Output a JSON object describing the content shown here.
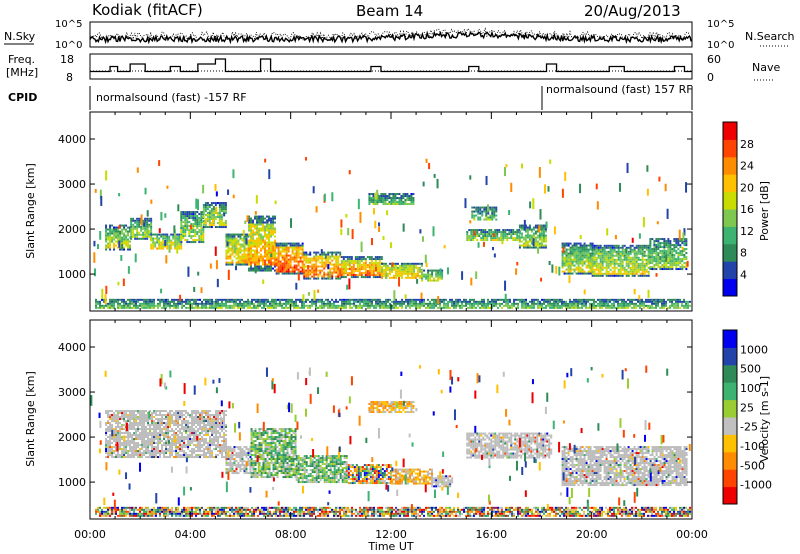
{
  "header": {
    "station": "Kodiak (fitACF)",
    "beam": "Beam 14",
    "date": "20/Aug/2013"
  },
  "noise_panel": {
    "left_label": "N.Sky",
    "right_label": "N.Search",
    "left_ticks": [
      "10^5",
      "10^0"
    ],
    "right_ticks": [
      "10^5",
      "10^0"
    ]
  },
  "freq_panel": {
    "left_label_1": "Freq.",
    "left_label_2": "[MHz]",
    "right_label": "Nave",
    "left_ticks": [
      "18",
      "8"
    ],
    "right_ticks": [
      "60",
      "0"
    ]
  },
  "cpid_panel": {
    "label": "CPID",
    "segments": [
      {
        "text": "normalsound (fast) -157 RF",
        "start_hour": 0
      },
      {
        "text": "normalsound (fast) 157 RF",
        "start_hour": 18
      }
    ]
  },
  "colors": {
    "power_scale": [
      "#0000ee",
      "#2244aa",
      "#2e8b57",
      "#3cb371",
      "#7ec850",
      "#c8dc00",
      "#ffc000",
      "#ff8c00",
      "#ff4400",
      "#ee0000"
    ],
    "velocity_scale": [
      "#ee0000",
      "#ff4400",
      "#ff8c00",
      "#ffc000",
      "#c0c0c0",
      "#9acd32",
      "#3cb371",
      "#2e8b57",
      "#2244aa",
      "#0000ee"
    ],
    "velocity_ground": "#bbbbbb"
  },
  "chart_data": [
    {
      "type": "heatmap",
      "name": "power",
      "ylabel": "Slant Range [km]",
      "xlim_hours": [
        0,
        24
      ],
      "ylim": [
        180,
        4600
      ],
      "yticks": [
        1000,
        2000,
        3000,
        4000
      ],
      "colorbar": {
        "label": "Power [dB]",
        "range": [
          0,
          32
        ],
        "ticks": [
          4,
          8,
          12,
          16,
          20,
          24,
          28
        ]
      },
      "echo_regions": [
        {
          "t0": 0.6,
          "t1": 1.6,
          "r0": 1550,
          "r1": 2100,
          "level": 14
        },
        {
          "t0": 1.6,
          "t1": 2.4,
          "r0": 1800,
          "r1": 2250,
          "level": 12
        },
        {
          "t0": 2.4,
          "t1": 3.6,
          "r0": 1550,
          "r1": 1900,
          "level": 16
        },
        {
          "t0": 3.6,
          "t1": 4.5,
          "r0": 1700,
          "r1": 2400,
          "level": 13
        },
        {
          "t0": 4.5,
          "t1": 5.4,
          "r0": 2050,
          "r1": 2600,
          "level": 14
        },
        {
          "t0": 5.4,
          "t1": 6.3,
          "r0": 1200,
          "r1": 1900,
          "level": 18
        },
        {
          "t0": 6.3,
          "t1": 7.4,
          "r0": 1100,
          "r1": 2300,
          "level": 20
        },
        {
          "t0": 7.4,
          "t1": 8.5,
          "r0": 1000,
          "r1": 1700,
          "level": 24
        },
        {
          "t0": 8.5,
          "t1": 10.0,
          "r0": 900,
          "r1": 1500,
          "level": 22
        },
        {
          "t0": 10.0,
          "t1": 11.6,
          "r0": 950,
          "r1": 1400,
          "level": 21
        },
        {
          "t0": 11.6,
          "t1": 13.2,
          "r0": 900,
          "r1": 1250,
          "level": 18
        },
        {
          "t0": 13.2,
          "t1": 14.0,
          "r0": 850,
          "r1": 1100,
          "level": 14
        },
        {
          "t0": 11.1,
          "t1": 12.9,
          "r0": 2550,
          "r1": 2800,
          "level": 10
        },
        {
          "t0": 15.0,
          "t1": 17.1,
          "r0": 1750,
          "r1": 2000,
          "level": 12
        },
        {
          "t0": 17.1,
          "t1": 18.2,
          "r0": 1600,
          "r1": 2100,
          "level": 13
        },
        {
          "t0": 18.8,
          "t1": 20.0,
          "r0": 1000,
          "r1": 1700,
          "level": 14
        },
        {
          "t0": 20.0,
          "t1": 22.3,
          "r0": 950,
          "r1": 1650,
          "level": 15
        },
        {
          "t0": 22.3,
          "t1": 23.8,
          "r0": 1100,
          "r1": 1800,
          "level": 12
        },
        {
          "t0": 15.2,
          "t1": 16.2,
          "r0": 2200,
          "r1": 2500,
          "level": 10
        },
        {
          "t0": 0.2,
          "t1": 23.9,
          "r0": 250,
          "r1": 450,
          "level": 10
        }
      ]
    },
    {
      "type": "heatmap",
      "name": "velocity",
      "xlabel": "Time UT",
      "ylabel": "Slant Range [km]",
      "xlim_hours": [
        0,
        24
      ],
      "xticks": [
        "00:00",
        "04:00",
        "08:00",
        "12:00",
        "16:00",
        "20:00",
        "00:00"
      ],
      "ylim": [
        180,
        4600
      ],
      "yticks": [
        1000,
        2000,
        3000,
        4000
      ],
      "colorbar": {
        "label": "Velocity [m s-1]",
        "ticks": [
          "1000",
          "500",
          "100",
          "25",
          "-25",
          "-100",
          "-500",
          "-1000"
        ]
      },
      "echo_regions": [
        {
          "t0": 0.6,
          "t1": 5.4,
          "r0": 1550,
          "r1": 2600,
          "kind": "ground"
        },
        {
          "t0": 5.4,
          "t1": 6.4,
          "r0": 1200,
          "r1": 1800,
          "kind": "ground"
        },
        {
          "t0": 6.4,
          "t1": 8.2,
          "r0": 1100,
          "r1": 2200,
          "kind": "positive"
        },
        {
          "t0": 8.2,
          "t1": 10.2,
          "r0": 1000,
          "r1": 1600,
          "kind": "positive"
        },
        {
          "t0": 10.2,
          "t1": 12.0,
          "r0": 1000,
          "r1": 1400,
          "kind": "mixed"
        },
        {
          "t0": 12.0,
          "t1": 13.6,
          "r0": 950,
          "r1": 1300,
          "kind": "negative"
        },
        {
          "t0": 13.6,
          "t1": 14.4,
          "r0": 900,
          "r1": 1150,
          "kind": "ground"
        },
        {
          "t0": 11.1,
          "t1": 12.9,
          "r0": 2550,
          "r1": 2800,
          "kind": "negative"
        },
        {
          "t0": 15.0,
          "t1": 18.4,
          "r0": 1550,
          "r1": 2100,
          "kind": "ground"
        },
        {
          "t0": 18.8,
          "t1": 23.8,
          "r0": 950,
          "r1": 1800,
          "kind": "ground"
        },
        {
          "t0": 0.2,
          "t1": 23.9,
          "r0": 250,
          "r1": 450,
          "kind": "mixed"
        }
      ]
    }
  ]
}
